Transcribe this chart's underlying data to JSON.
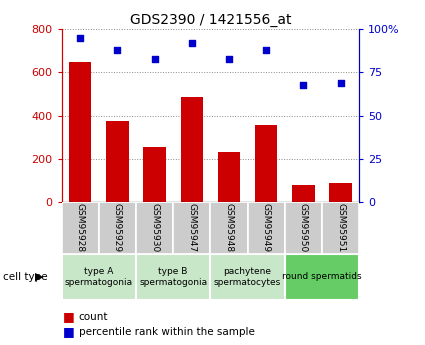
{
  "title": "GDS2390 / 1421556_at",
  "samples": [
    "GSM95928",
    "GSM95929",
    "GSM95930",
    "GSM95947",
    "GSM95948",
    "GSM95949",
    "GSM95950",
    "GSM95951"
  ],
  "counts": [
    650,
    375,
    255,
    485,
    230,
    355,
    80,
    85
  ],
  "percentiles": [
    95,
    88,
    83,
    92,
    83,
    88,
    68,
    69
  ],
  "cell_types": [
    {
      "label": "type A\nspermatogonia",
      "start": 0,
      "end": 2,
      "color": "#c8e6c8"
    },
    {
      "label": "type B\nspermatogonia",
      "start": 2,
      "end": 4,
      "color": "#c8e6c8"
    },
    {
      "label": "pachytene\nspermatocytes",
      "start": 4,
      "end": 6,
      "color": "#c8e6c8"
    },
    {
      "label": "round spermatids",
      "start": 6,
      "end": 8,
      "color": "#66cc66"
    }
  ],
  "bar_color": "#cc0000",
  "dot_color": "#0000cc",
  "left_axis_color": "#cc0000",
  "right_axis_color": "#0000cc",
  "ylim_left": [
    0,
    800
  ],
  "ylim_right": [
    0,
    100
  ],
  "left_ticks": [
    0,
    200,
    400,
    600,
    800
  ],
  "right_ticks": [
    0,
    25,
    50,
    75,
    100
  ],
  "right_tick_labels": [
    "0",
    "25",
    "50",
    "75",
    "100%"
  ],
  "grid_color": "#888888",
  "tick_area_color": "#cccccc",
  "cell_type_label": "cell type",
  "legend_count_label": "count",
  "legend_pct_label": "percentile rank within the sample",
  "bar_width": 0.6
}
